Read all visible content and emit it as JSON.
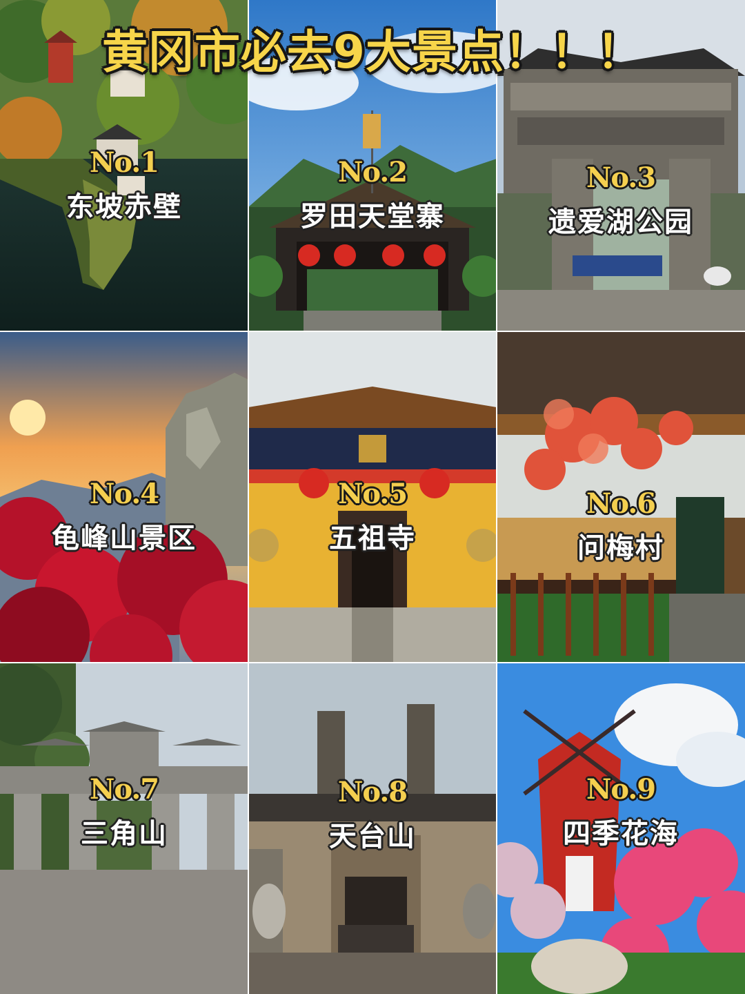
{
  "headline": "黄冈市必去9大景点！！！",
  "spots": [
    {
      "num": "No.1",
      "name": "东坡赤壁",
      "icon": "pagoda-island-photo"
    },
    {
      "num": "No.2",
      "name": "罗田天堂寨",
      "icon": "lantern-gate-photo"
    },
    {
      "num": "No.3",
      "name": "遗爱湖公园",
      "icon": "stone-archway-photo"
    },
    {
      "num": "No.4",
      "name": "龟峰山景区",
      "icon": "sunset-azalea-photo"
    },
    {
      "num": "No.5",
      "name": "五祖寺",
      "icon": "yellow-temple-photo"
    },
    {
      "num": "No.6",
      "name": "问梅村",
      "icon": "maple-wooden-house-photo"
    },
    {
      "num": "No.7",
      "name": "三角山",
      "icon": "stone-gate-photo"
    },
    {
      "num": "No.8",
      "name": "天台山",
      "icon": "stone-temple-photo"
    },
    {
      "num": "No.9",
      "name": "四季花海",
      "icon": "windmill-flowers-photo"
    }
  ],
  "colors": {
    "headline": "#f7d54a",
    "number": "#f4cf4f",
    "name": "#ffffff",
    "outline": "#1a1a1a"
  }
}
